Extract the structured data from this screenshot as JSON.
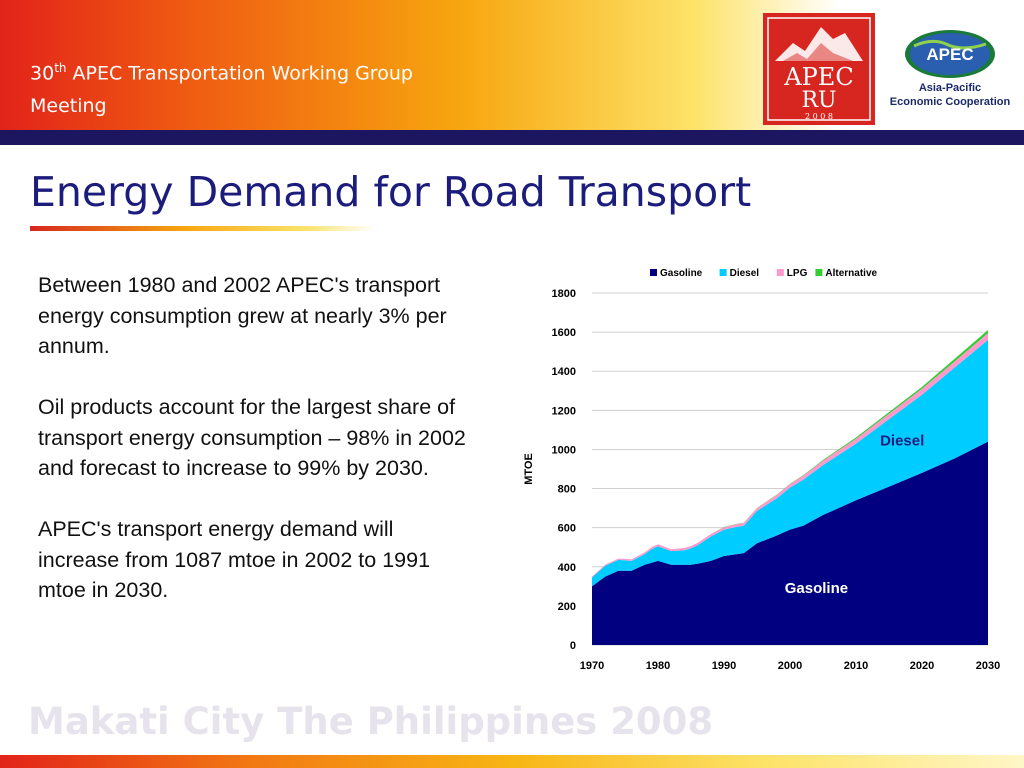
{
  "header": {
    "title_number": "30",
    "title_superscript": "th",
    "title_line1": " APEC Transportation Working Group",
    "title_line2": "Meeting"
  },
  "logos": {
    "ru_logo_text": "APEC",
    "ru_logo_sub": "RU",
    "ru_logo_year": "2 0 0 8",
    "apec_badge": "APEC",
    "apec_line1": "Asia-Pacific",
    "apec_line2": "Economic Cooperation"
  },
  "slide": {
    "title": "Energy Demand for Road Transport",
    "paragraphs": [
      "Between 1980 and 2002 APEC's transport energy consumption grew at nearly 3% per annum.",
      "Oil products account for the largest share of transport energy consumption – 98% in 2002 and forecast to increase to 99% by 2030.",
      "APEC's transport energy demand will increase from 1087 mtoe in 2002 to 1991 mtoe in 2030."
    ]
  },
  "footer": {
    "text": "Makati City The Philippines 2008"
  },
  "chart_data": {
    "type": "area",
    "stacked": true,
    "ylabel": "MTOE",
    "xlabel": "",
    "xlim": [
      1970,
      2030
    ],
    "ylim": [
      0,
      1800
    ],
    "x_ticks": [
      1970,
      1980,
      1990,
      2000,
      2010,
      2020,
      2030
    ],
    "y_ticks": [
      0,
      200,
      400,
      600,
      800,
      1000,
      1200,
      1400,
      1600,
      1800
    ],
    "grid": "horizontal",
    "legend_position": "top",
    "x": [
      1970,
      1972,
      1974,
      1976,
      1978,
      1979,
      1980,
      1982,
      1984,
      1985,
      1986,
      1988,
      1990,
      1992,
      1993,
      1995,
      1998,
      2000,
      2002,
      2005,
      2010,
      2015,
      2020,
      2025,
      2030
    ],
    "series": [
      {
        "name": "Gasoline",
        "color": "#000080",
        "values": [
          300,
          350,
          380,
          380,
          410,
          420,
          430,
          410,
          410,
          410,
          415,
          430,
          455,
          465,
          470,
          520,
          560,
          590,
          610,
          665,
          740,
          810,
          880,
          955,
          1040
        ]
      },
      {
        "name": "Diesel",
        "color": "#00ccff",
        "values": [
          45,
          55,
          55,
          50,
          55,
          70,
          75,
          70,
          75,
          85,
          95,
          125,
          135,
          140,
          140,
          165,
          190,
          215,
          235,
          255,
          290,
          345,
          400,
          465,
          520
        ]
      },
      {
        "name": "LPG",
        "color": "#ff99cc",
        "values": [
          5,
          6,
          7,
          8,
          9,
          9,
          10,
          10,
          11,
          11,
          12,
          12,
          13,
          14,
          14,
          15,
          17,
          18,
          20,
          22,
          25,
          28,
          30,
          32,
          35
        ]
      },
      {
        "name": "Alternative",
        "color": "#33cc33",
        "values": [
          0,
          0,
          0,
          0,
          0,
          0,
          0,
          0,
          0,
          0,
          0,
          0,
          1,
          1,
          1,
          1,
          2,
          2,
          3,
          4,
          6,
          8,
          10,
          13,
          16
        ]
      }
    ],
    "annotations": [
      {
        "text": "Diesel",
        "x": 2017,
        "y": 1020,
        "color": "#1c1c7c"
      },
      {
        "text": "Gasoline",
        "x": 2004,
        "y": 265,
        "color": "#ffffff"
      }
    ]
  }
}
